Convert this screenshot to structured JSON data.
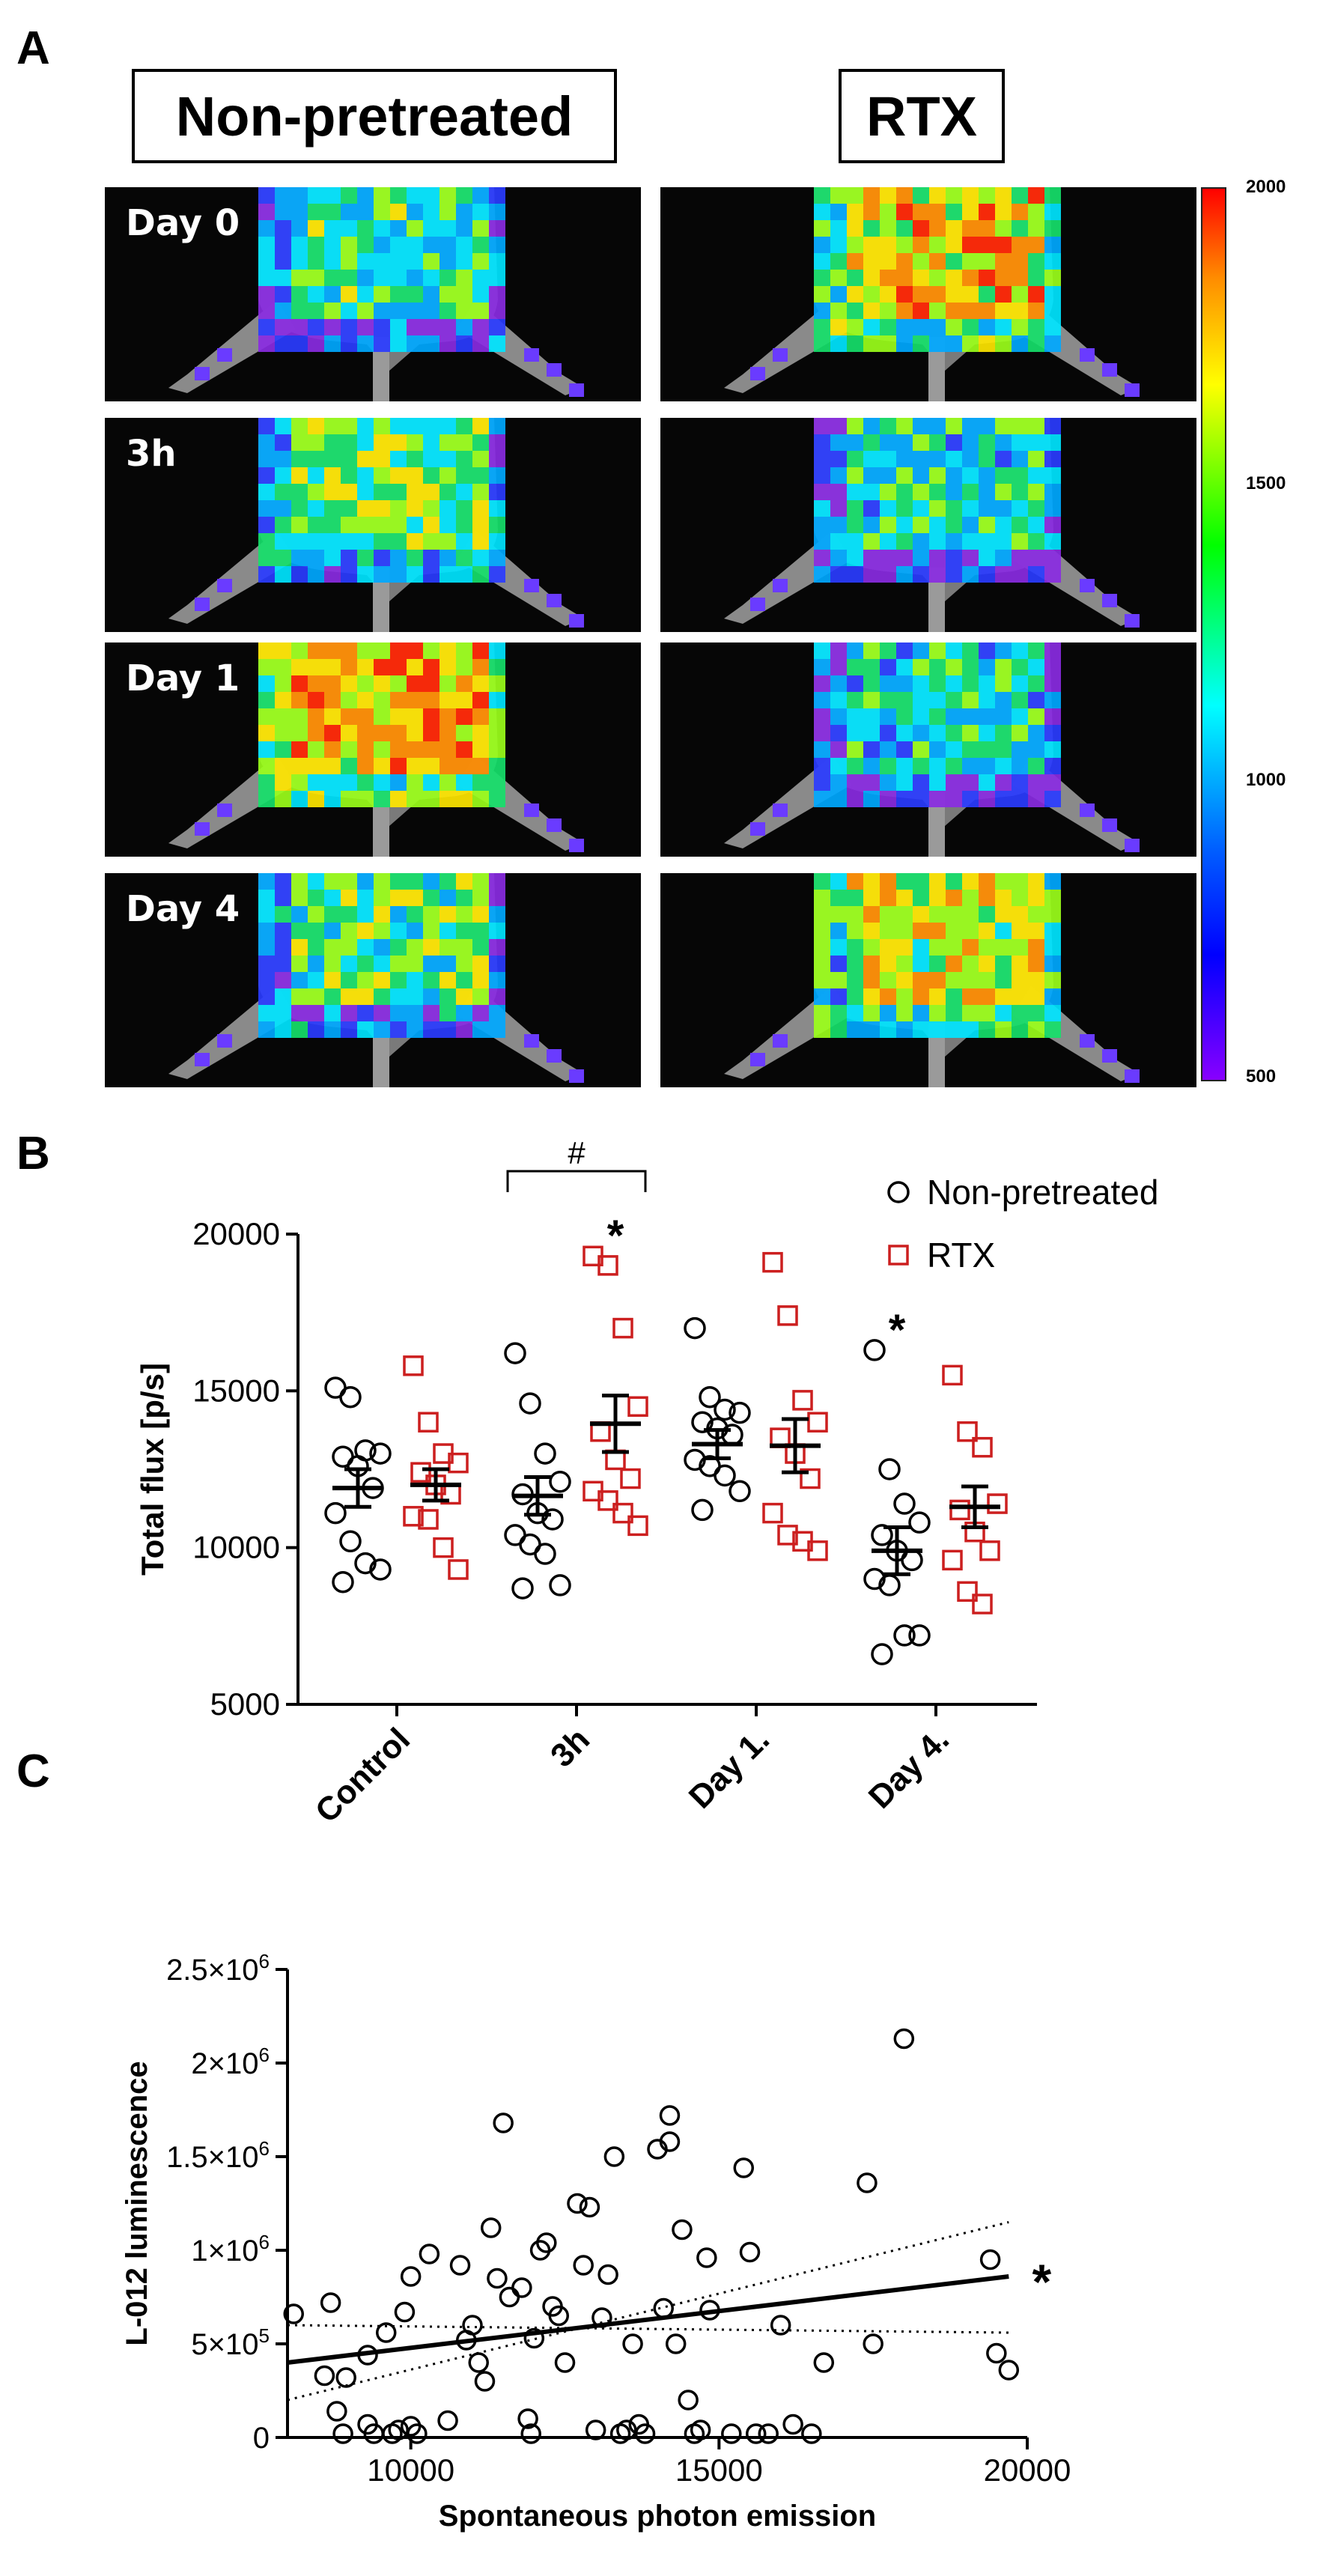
{
  "panel_a": {
    "letter": "A",
    "columns": [
      "Non-pretreated",
      "RTX"
    ],
    "rows": [
      {
        "label": "Day 0",
        "intensity_nonpretreated": 0.46,
        "intensity_rtx": 0.72
      },
      {
        "label": "3h",
        "intensity_nonpretreated": 0.55,
        "intensity_rtx": 0.42
      },
      {
        "label": "Day 1",
        "intensity_nonpretreated": 0.78,
        "intensity_rtx": 0.4
      },
      {
        "label": "Day 4",
        "intensity_nonpretreated": 0.5,
        "intensity_rtx": 0.66
      }
    ],
    "colorbar": {
      "ticks": [
        "2000",
        "1500",
        "1000",
        "500"
      ],
      "colors": [
        "#ff0000",
        "#ff8c00",
        "#ffff00",
        "#00ff00",
        "#00ffff",
        "#0060ff",
        "#0000ff",
        "#8800ff"
      ]
    }
  },
  "chart_data": [
    {
      "panel": "B",
      "type": "scatter",
      "ylabel": "Total flux [p/s]",
      "ylim": [
        5000,
        20000
      ],
      "yticks": [
        "20000",
        "15000",
        "10000",
        "5000"
      ],
      "categories": [
        "Control",
        "3h",
        "Day 1.",
        "Day 4."
      ],
      "legend": [
        {
          "name": "Non-pretreated",
          "marker": "circle",
          "color": "#000000"
        },
        {
          "name": "RTX",
          "marker": "square",
          "color": "#cc1f1f"
        }
      ],
      "series": [
        {
          "name": "Non-pretreated",
          "color": "#000000",
          "marker": "circle",
          "groups": [
            {
              "values": [
                15100,
                14800,
                13100,
                13000,
                12900,
                12600,
                11900,
                11100,
                10200,
                9500,
                9300,
                8900
              ],
              "mean": 11900,
              "sem": 600
            },
            {
              "values": [
                16200,
                14600,
                13000,
                12100,
                11700,
                11100,
                10900,
                10400,
                10100,
                9800,
                8800,
                8700
              ],
              "mean": 11650,
              "sem": 600
            },
            {
              "values": [
                17000,
                14800,
                14400,
                14300,
                14000,
                13800,
                13600,
                12800,
                12600,
                12300,
                11800,
                11200
              ],
              "mean": 13300,
              "sem": 450
            },
            {
              "values": [
                16300,
                12500,
                11400,
                10800,
                10400,
                9900,
                9600,
                9000,
                8800,
                7200,
                7200,
                6600
              ],
              "mean": 9900,
              "sem": 750
            }
          ]
        },
        {
          "name": "RTX",
          "color": "#cc1f1f",
          "marker": "square",
          "groups": [
            {
              "values": [
                15800,
                14000,
                13000,
                12700,
                12400,
                12000,
                11700,
                11000,
                10900,
                10000,
                9300
              ],
              "mean": 12000,
              "sem": 500
            },
            {
              "values": [
                19300,
                19000,
                17000,
                14500,
                13700,
                12800,
                12200,
                11800,
                11500,
                11100,
                10700
              ],
              "mean": 13950,
              "sem": 900
            },
            {
              "values": [
                19100,
                17400,
                14700,
                14000,
                13500,
                13000,
                12200,
                11100,
                10400,
                10200,
                9900
              ],
              "mean": 13250,
              "sem": 850
            },
            {
              "values": [
                15500,
                13700,
                13200,
                11400,
                11200,
                10500,
                9900,
                9600,
                8600,
                8200
              ],
              "mean": 11300,
              "sem": 650
            }
          ]
        }
      ],
      "annotations": [
        {
          "text": "#",
          "type": "bracket",
          "between": [
            "Non-pretreated 3h",
            "RTX 3h"
          ]
        },
        {
          "text": "*",
          "at": "RTX 3h",
          "y": 19900
        },
        {
          "text": "*",
          "at": "Non-pretreated Day 4.",
          "y": 16900
        }
      ]
    },
    {
      "panel": "C",
      "type": "scatter",
      "xlabel": "Spontaneous photon emission",
      "ylabel": "L-012 luminescence",
      "xlim": [
        8000,
        20000
      ],
      "ylim": [
        0,
        2500000
      ],
      "xticks": [
        "10000",
        "15000",
        "20000"
      ],
      "yticks": [
        {
          "mantissa": "0",
          "exp": ""
        },
        {
          "mantissa": "5×10",
          "exp": "5"
        },
        {
          "mantissa": "1×10",
          "exp": "6"
        },
        {
          "mantissa": "1.5×10",
          "exp": "6"
        },
        {
          "mantissa": "2×10",
          "exp": "6"
        },
        {
          "mantissa": "2.5×10",
          "exp": "6"
        }
      ],
      "points": [
        [
          8100,
          660000
        ],
        [
          8600,
          330000
        ],
        [
          8700,
          720000
        ],
        [
          8800,
          140000
        ],
        [
          8900,
          20000
        ],
        [
          8950,
          320000
        ],
        [
          9300,
          440000
        ],
        [
          9300,
          70000
        ],
        [
          9400,
          20000
        ],
        [
          9600,
          560000
        ],
        [
          9700,
          20000
        ],
        [
          9800,
          40000
        ],
        [
          9900,
          670000
        ],
        [
          10000,
          860000
        ],
        [
          10000,
          60000
        ],
        [
          10100,
          20000
        ],
        [
          10300,
          980000
        ],
        [
          10600,
          90000
        ],
        [
          10800,
          920000
        ],
        [
          10900,
          520000
        ],
        [
          11000,
          600000
        ],
        [
          11100,
          400000
        ],
        [
          11200,
          300000
        ],
        [
          11300,
          1120000
        ],
        [
          11400,
          850000
        ],
        [
          11500,
          1680000
        ],
        [
          11600,
          750000
        ],
        [
          11800,
          800000
        ],
        [
          11900,
          100000
        ],
        [
          11950,
          20000
        ],
        [
          12000,
          530000
        ],
        [
          12100,
          1000000
        ],
        [
          12200,
          1040000
        ],
        [
          12300,
          700000
        ],
        [
          12400,
          650000
        ],
        [
          12500,
          400000
        ],
        [
          12700,
          1250000
        ],
        [
          12800,
          920000
        ],
        [
          12900,
          1230000
        ],
        [
          13000,
          40000
        ],
        [
          13100,
          640000
        ],
        [
          13200,
          870000
        ],
        [
          13300,
          1500000
        ],
        [
          13400,
          20000
        ],
        [
          13500,
          40000
        ],
        [
          13600,
          500000
        ],
        [
          13700,
          70000
        ],
        [
          13800,
          20000
        ],
        [
          14000,
          1540000
        ],
        [
          14100,
          690000
        ],
        [
          14200,
          1720000
        ],
        [
          14200,
          1580000
        ],
        [
          14300,
          500000
        ],
        [
          14400,
          1110000
        ],
        [
          14500,
          200000
        ],
        [
          14600,
          20000
        ],
        [
          14700,
          40000
        ],
        [
          14800,
          960000
        ],
        [
          14850,
          680000
        ],
        [
          15200,
          20000
        ],
        [
          15400,
          1440000
        ],
        [
          15500,
          990000
        ],
        [
          15600,
          20000
        ],
        [
          15800,
          20000
        ],
        [
          16000,
          600000
        ],
        [
          16200,
          70000
        ],
        [
          16500,
          20000
        ],
        [
          16700,
          400000
        ],
        [
          17400,
          1360000
        ],
        [
          17500,
          500000
        ],
        [
          18000,
          2130000
        ],
        [
          19400,
          950000
        ],
        [
          19500,
          450000
        ],
        [
          19700,
          360000
        ]
      ],
      "fit": {
        "x": [
          8000,
          19700
        ],
        "y": [
          400000,
          860000
        ]
      },
      "ci_upper": {
        "x": [
          8000,
          19700
        ],
        "y": [
          200000,
          1150000
        ]
      },
      "ci_lower": {
        "x": [
          8000,
          19700
        ],
        "y": [
          600000,
          560000
        ]
      },
      "annotation": "*"
    }
  ]
}
